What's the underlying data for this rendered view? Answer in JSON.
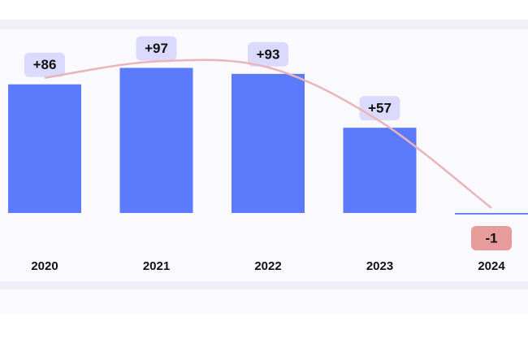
{
  "chart_data": {
    "type": "bar",
    "categories": [
      "2020",
      "2021",
      "2022",
      "2023",
      "2024"
    ],
    "values": [
      86,
      97,
      93,
      57,
      -1
    ],
    "value_labels": [
      "+86",
      "+97",
      "+93",
      "+57",
      "-1"
    ],
    "color": "#5b7bfc",
    "negative_color": "#e89b9b",
    "trend_color": "#eab4bb"
  }
}
